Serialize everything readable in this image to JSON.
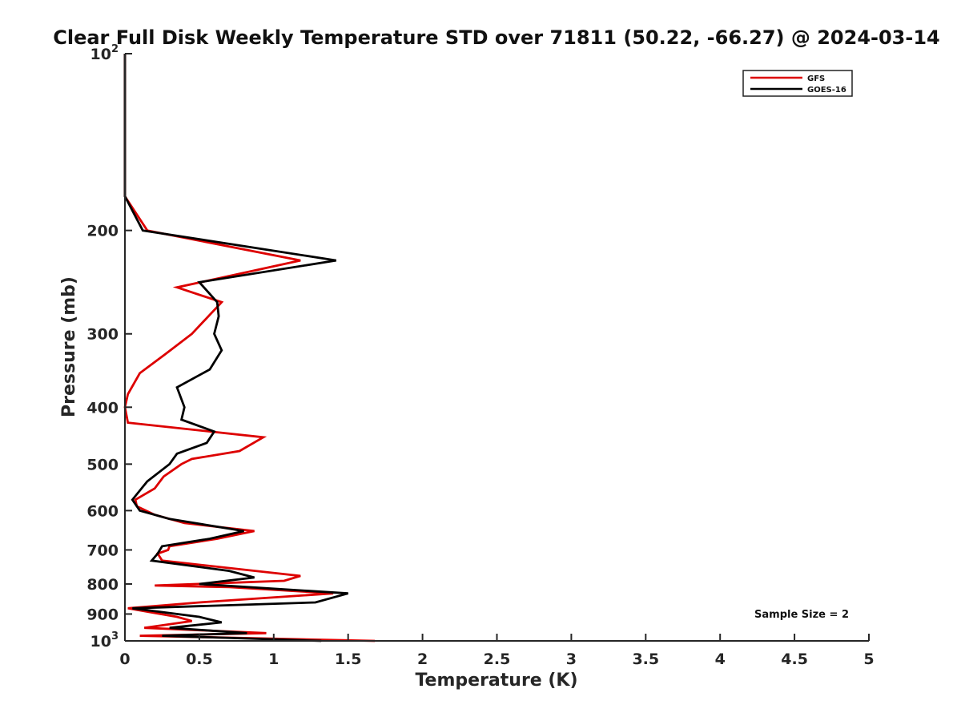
{
  "chart_data": {
    "type": "line",
    "title": "Clear Full Disk Weekly Temperature STD over 71811 (50.22, -66.27) @ 2024-03-14",
    "xlabel": "Temperature (K)",
    "ylabel": "Pressure (mb)",
    "xlim": [
      0,
      5
    ],
    "ylim": [
      100,
      1000
    ],
    "y_scale": "log",
    "y_reversed": true,
    "grid": false,
    "x_ticks": [
      0,
      0.5,
      1,
      1.5,
      2,
      2.5,
      3,
      3.5,
      4,
      4.5,
      5
    ],
    "x_tick_labels": [
      "0",
      "0.5",
      "1",
      "1.5",
      "2",
      "2.5",
      "3",
      "3.5",
      "4",
      "4.5",
      "5"
    ],
    "y_ticks": [
      200,
      300,
      400,
      500,
      600,
      700,
      800,
      900
    ],
    "y_tick_labels": [
      "200",
      "300",
      "400",
      "500",
      "600",
      "700",
      "800",
      "900"
    ],
    "y_edge_ticks": [
      {
        "value": 100,
        "base": "10",
        "exp": "2"
      },
      {
        "value": 1000,
        "base": "10",
        "exp": "3"
      }
    ],
    "legend": {
      "placement": "top-right"
    },
    "annotation": "Sample Size = 2",
    "series": [
      {
        "name": "GFS",
        "color": "#dd0000",
        "points": [
          [
            0,
            100
          ],
          [
            0,
            150
          ],
          [
            0,
            175
          ],
          [
            0.15,
            200
          ],
          [
            1.18,
            225
          ],
          [
            0.35,
            250
          ],
          [
            0.65,
            265
          ],
          [
            0.45,
            300
          ],
          [
            0.27,
            325
          ],
          [
            0.1,
            350
          ],
          [
            0.02,
            380
          ],
          [
            0,
            400
          ],
          [
            0.02,
            425
          ],
          [
            0.93,
            450
          ],
          [
            0.77,
            475
          ],
          [
            0.45,
            490
          ],
          [
            0.38,
            500
          ],
          [
            0.26,
            525
          ],
          [
            0.2,
            550
          ],
          [
            0.07,
            575
          ],
          [
            0.08,
            590
          ],
          [
            0.2,
            610
          ],
          [
            0.4,
            630
          ],
          [
            0.87,
            650
          ],
          [
            0.62,
            670
          ],
          [
            0.3,
            690
          ],
          [
            0.29,
            700
          ],
          [
            0.22,
            710
          ],
          [
            0.25,
            730
          ],
          [
            1.18,
            775
          ],
          [
            1.07,
            790
          ],
          [
            0.2,
            805
          ],
          [
            0.7,
            810
          ],
          [
            1.4,
            830
          ],
          [
            0.5,
            860
          ],
          [
            0.02,
            880
          ],
          [
            0.35,
            910
          ],
          [
            0.45,
            925
          ],
          [
            0.13,
            950
          ],
          [
            0.95,
            970
          ],
          [
            0.1,
            980
          ],
          [
            1.68,
            1000
          ]
        ]
      },
      {
        "name": "GOES-16",
        "color": "#000000",
        "points": [
          [
            0,
            100
          ],
          [
            0,
            150
          ],
          [
            0,
            175
          ],
          [
            0.12,
            200
          ],
          [
            1.42,
            225
          ],
          [
            0.5,
            245
          ],
          [
            0.62,
            265
          ],
          [
            0.63,
            280
          ],
          [
            0.6,
            300
          ],
          [
            0.65,
            320
          ],
          [
            0.57,
            345
          ],
          [
            0.35,
            370
          ],
          [
            0.4,
            400
          ],
          [
            0.38,
            420
          ],
          [
            0.6,
            440
          ],
          [
            0.55,
            460
          ],
          [
            0.35,
            480
          ],
          [
            0.3,
            500
          ],
          [
            0.15,
            535
          ],
          [
            0.05,
            575
          ],
          [
            0.1,
            600
          ],
          [
            0.3,
            620
          ],
          [
            0.8,
            650
          ],
          [
            0.57,
            670
          ],
          [
            0.25,
            690
          ],
          [
            0.22,
            710
          ],
          [
            0.18,
            730
          ],
          [
            0.7,
            760
          ],
          [
            0.87,
            780
          ],
          [
            0.5,
            800
          ],
          [
            1.5,
            830
          ],
          [
            1.28,
            860
          ],
          [
            0.05,
            880
          ],
          [
            0.5,
            910
          ],
          [
            0.65,
            930
          ],
          [
            0.3,
            950
          ],
          [
            0.82,
            970
          ],
          [
            0.25,
            980
          ],
          [
            1.32,
            1000
          ]
        ]
      }
    ]
  }
}
